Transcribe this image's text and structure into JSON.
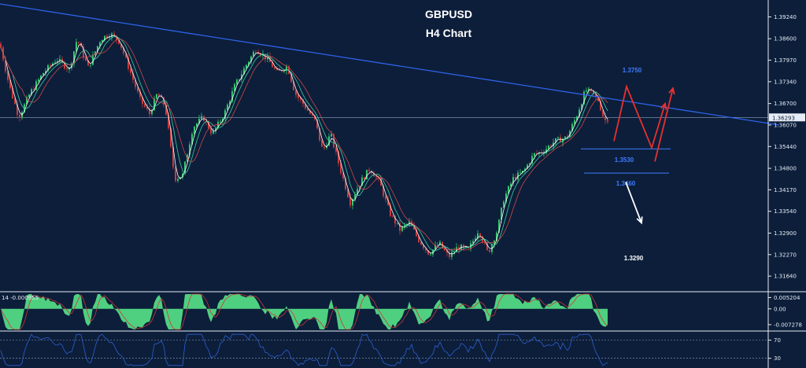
{
  "chart_data": {
    "type": "candlestick",
    "title": "GBPUSD",
    "subtitle": "H4 Chart",
    "price_axis": {
      "ticks": [
        "1.39240",
        "1.38600",
        "1.37970",
        "1.37340",
        "1.36700",
        "1.36070",
        "1.35440",
        "1.34800",
        "1.34170",
        "1.33540",
        "1.32900",
        "1.32270",
        "1.31640"
      ],
      "tick_values": [
        1.3924,
        1.386,
        1.3797,
        1.3734,
        1.367,
        1.3607,
        1.3544,
        1.348,
        1.3417,
        1.3354,
        1.329,
        1.3227,
        1.3164
      ],
      "ylim": [
        1.3132,
        1.3962
      ],
      "current_price": "1.36293",
      "current_value": 1.36293
    },
    "price_path": [
      [
        0,
        1.3845
      ],
      [
        12,
        1.372
      ],
      [
        24,
        1.363
      ],
      [
        38,
        1.37
      ],
      [
        55,
        1.376
      ],
      [
        72,
        1.38
      ],
      [
        88,
        1.377
      ],
      [
        98,
        1.386
      ],
      [
        112,
        1.3775
      ],
      [
        128,
        1.386
      ],
      [
        140,
        1.3875
      ],
      [
        152,
        1.385
      ],
      [
        166,
        1.376
      ],
      [
        178,
        1.368
      ],
      [
        190,
        1.364
      ],
      [
        200,
        1.37
      ],
      [
        210,
        1.366
      ],
      [
        222,
        1.345
      ],
      [
        232,
        1.346
      ],
      [
        245,
        1.36
      ],
      [
        258,
        1.363
      ],
      [
        270,
        1.358
      ],
      [
        285,
        1.364
      ],
      [
        298,
        1.372
      ],
      [
        312,
        1.378
      ],
      [
        325,
        1.383
      ],
      [
        340,
        1.38
      ],
      [
        352,
        1.376
      ],
      [
        365,
        1.378
      ],
      [
        375,
        1.37
      ],
      [
        388,
        1.366
      ],
      [
        400,
        1.362
      ],
      [
        410,
        1.353
      ],
      [
        420,
        1.358
      ],
      [
        432,
        1.348
      ],
      [
        445,
        1.338
      ],
      [
        458,
        1.344
      ],
      [
        470,
        1.348
      ],
      [
        482,
        1.344
      ],
      [
        495,
        1.335
      ],
      [
        508,
        1.33
      ],
      [
        520,
        1.332
      ],
      [
        532,
        1.327
      ],
      [
        545,
        1.323
      ],
      [
        558,
        1.326
      ],
      [
        570,
        1.322
      ],
      [
        582,
        1.325
      ],
      [
        595,
        1.324
      ],
      [
        608,
        1.33
      ],
      [
        620,
        1.323
      ],
      [
        632,
        1.33
      ],
      [
        640,
        1.339
      ],
      [
        652,
        1.345
      ],
      [
        665,
        1.347
      ],
      [
        678,
        1.352
      ],
      [
        690,
        1.353
      ],
      [
        705,
        1.356
      ],
      [
        720,
        1.357
      ],
      [
        732,
        1.363
      ],
      [
        744,
        1.371
      ],
      [
        752,
        1.37
      ],
      [
        760,
        1.368
      ],
      [
        768,
        1.362
      ],
      [
        774,
        1.3628
      ]
    ],
    "trendline": {
      "from": [
        0,
        1.3962
      ],
      "to": [
        990,
        1.3607
      ]
    },
    "current_price_line": 1.36293,
    "levels": [
      {
        "label": "1.3750",
        "value": 1.375,
        "color": "#3f7bff"
      },
      {
        "label": "1.3530",
        "value": 1.353,
        "color": "#3f7bff"
      },
      {
        "label": "1.3460",
        "value": 1.346,
        "color": "#3f7bff"
      },
      {
        "label": "1.3290",
        "value": 1.329,
        "color": "#ffffff"
      }
    ],
    "scenario_paths": {
      "bullish": [
        [
          780,
          1.356
        ],
        [
          796,
          1.372
        ],
        [
          828,
          1.354
        ],
        [
          845,
          1.367
        ],
        [
          832,
          1.35
        ],
        [
          855,
          1.3715
        ]
      ],
      "bearish": [
        [
          795,
          1.344
        ],
        [
          815,
          1.332
        ]
      ]
    },
    "oscillator_1": {
      "label": "14 -0.000955",
      "ticks": [
        "0.005204",
        "0.00",
        "-0.007278"
      ],
      "tick_values": [
        0.005204,
        0.0,
        -0.007278
      ],
      "ylim": [
        -0.0095,
        0.0068
      ],
      "color": "#4fd080"
    },
    "oscillator_2": {
      "ticks": [
        "70",
        "30"
      ],
      "tick_values": [
        70,
        30
      ],
      "ylim": [
        12,
        85
      ],
      "color": "#2f5fd0"
    },
    "colors": {
      "background": "#0c1e3a",
      "trendline": "#2e62e8",
      "bullish_arrow": "#e8302e",
      "bearish_arrow": "#ffffff",
      "candle_up": "#33c46c",
      "candle_down": "#c9393b"
    }
  }
}
